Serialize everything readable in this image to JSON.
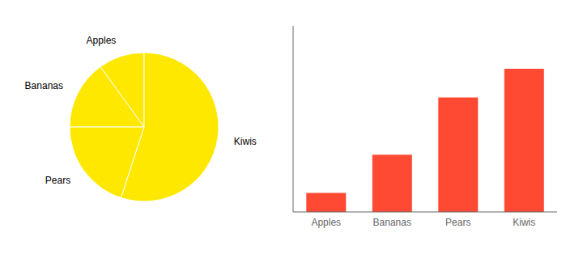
{
  "chart_data": [
    {
      "type": "pie",
      "categories": [
        "Apples",
        "Bananas",
        "Pears",
        "Kiwis"
      ],
      "values": [
        10,
        15,
        20,
        55
      ],
      "color": "#FFE800"
    },
    {
      "type": "bar",
      "categories": [
        "Apples",
        "Bananas",
        "Pears",
        "Kiwis"
      ],
      "values": [
        10,
        30,
        60,
        75
      ],
      "color": "#FF4A33",
      "ylim": [
        0,
        97.5
      ],
      "tick_labels": "x"
    }
  ]
}
